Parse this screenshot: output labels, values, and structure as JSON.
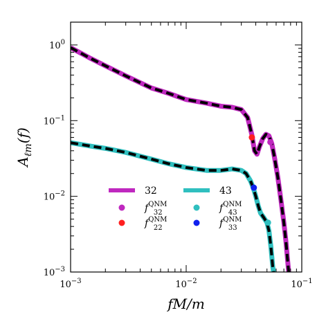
{
  "chart_data": {
    "type": "line",
    "x_scale": "log",
    "y_scale": "log",
    "xlim": [
      0.001,
      0.1
    ],
    "ylim": [
      0.001,
      2.0
    ],
    "xlabel": "fM/m",
    "ylabel": "A_{ℓm}(f)",
    "x_ticks": [
      {
        "value": 0.001,
        "label": "10",
        "exp": "−3"
      },
      {
        "value": 0.01,
        "label": "10",
        "exp": "−2"
      },
      {
        "value": 0.1,
        "label": "10",
        "exp": "−1"
      }
    ],
    "y_ticks": [
      {
        "value": 0.001,
        "label": "10",
        "exp": "−3"
      },
      {
        "value": 0.01,
        "label": "10",
        "exp": "−2"
      },
      {
        "value": 0.1,
        "label": "10",
        "exp": "−1"
      },
      {
        "value": 1.0,
        "label": "10",
        "exp": "0"
      }
    ],
    "series": [
      {
        "name": "32",
        "color": "#bf28bf",
        "style": "solid-thick",
        "points": [
          [
            0.001,
            0.92
          ],
          [
            0.0015,
            0.66
          ],
          [
            0.002,
            0.53
          ],
          [
            0.003,
            0.39
          ],
          [
            0.005,
            0.27
          ],
          [
            0.007,
            0.23
          ],
          [
            0.01,
            0.19
          ],
          [
            0.015,
            0.17
          ],
          [
            0.02,
            0.155
          ],
          [
            0.025,
            0.15
          ],
          [
            0.03,
            0.14
          ],
          [
            0.034,
            0.11
          ],
          [
            0.037,
            0.065
          ],
          [
            0.039,
            0.04
          ],
          [
            0.041,
            0.036
          ],
          [
            0.043,
            0.045
          ],
          [
            0.046,
            0.058
          ],
          [
            0.049,
            0.066
          ],
          [
            0.052,
            0.063
          ],
          [
            0.055,
            0.05
          ],
          [
            0.058,
            0.033
          ],
          [
            0.062,
            0.018
          ],
          [
            0.066,
            0.009
          ],
          [
            0.07,
            0.0045
          ],
          [
            0.073,
            0.0025
          ],
          [
            0.077,
            0.001
          ]
        ]
      },
      {
        "name": "43",
        "color": "#2fbfbf",
        "style": "solid-thick",
        "points": [
          [
            0.001,
            0.051
          ],
          [
            0.0015,
            0.046
          ],
          [
            0.002,
            0.043
          ],
          [
            0.003,
            0.038
          ],
          [
            0.005,
            0.031
          ],
          [
            0.007,
            0.027
          ],
          [
            0.01,
            0.024
          ],
          [
            0.015,
            0.022
          ],
          [
            0.02,
            0.022
          ],
          [
            0.025,
            0.023
          ],
          [
            0.03,
            0.022
          ],
          [
            0.033,
            0.02
          ],
          [
            0.036,
            0.016
          ],
          [
            0.038,
            0.013
          ],
          [
            0.04,
            0.01
          ],
          [
            0.042,
            0.0075
          ],
          [
            0.044,
            0.006
          ],
          [
            0.047,
            0.0052
          ],
          [
            0.05,
            0.0045
          ],
          [
            0.052,
            0.0035
          ],
          [
            0.054,
            0.0022
          ],
          [
            0.056,
            0.0012
          ],
          [
            0.057,
            0.001
          ]
        ]
      }
    ],
    "fits": [
      {
        "of": "32",
        "color": "#000000",
        "style": "dashed"
      },
      {
        "of": "43",
        "color": "#000000",
        "style": "dashed"
      }
    ],
    "markers": [
      {
        "name": "f_32^QNM",
        "label_base": "f",
        "label_sub": "32",
        "label_sup": "QNM",
        "color": "#bf28bf",
        "x": 0.0535,
        "y": 0.052
      },
      {
        "name": "f_22^QNM",
        "label_base": "f",
        "label_sub": "22",
        "label_sup": "QNM",
        "color": "#ff2020",
        "x": 0.037,
        "y": 0.06
      },
      {
        "name": "f_43^QNM",
        "label_base": "f",
        "label_sub": "43",
        "label_sup": "QNM",
        "color": "#2fbfbf",
        "x": 0.051,
        "y": 0.0045
      },
      {
        "name": "f_33^QNM",
        "label_base": "f",
        "label_sub": "33",
        "label_sup": "QNM",
        "color": "#1020ee",
        "x": 0.0385,
        "y": 0.013
      }
    ],
    "legend": {
      "placement": "lower-left",
      "entries": [
        {
          "kind": "line",
          "label": "32",
          "color": "#bf28bf"
        },
        {
          "kind": "line",
          "label": "43",
          "color": "#2fbfbf"
        },
        {
          "kind": "marker",
          "marker": 0
        },
        {
          "kind": "marker",
          "marker": 2
        },
        {
          "kind": "marker",
          "marker": 1
        },
        {
          "kind": "marker",
          "marker": 3
        }
      ]
    },
    "grid": false
  }
}
